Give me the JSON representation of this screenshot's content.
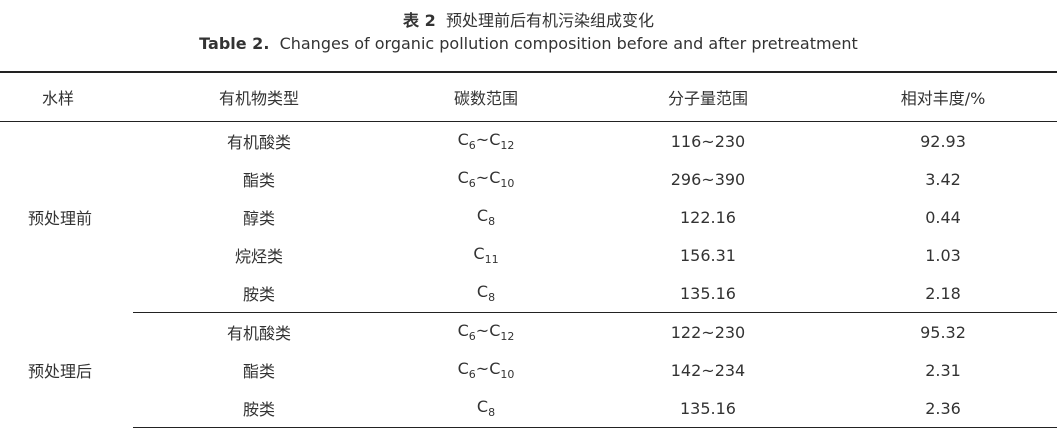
{
  "caption": {
    "zh_label": "表 2",
    "zh_title": "预处理前后有机污染组成变化",
    "en_label": "Table 2.",
    "en_title": "Changes of organic pollution composition before and after pretreatment"
  },
  "columns": [
    "水样",
    "有机物类型",
    "碳数范围",
    "分子量范围",
    "相对丰度/%"
  ],
  "groups": [
    {
      "sample": "预处理前",
      "rows": [
        {
          "type": "有机酸类",
          "carbon": [
            [
              "C",
              "6"
            ],
            [
              "C",
              "12"
            ]
          ],
          "mw": "116~230",
          "abundance": "92.93"
        },
        {
          "type": "酯类",
          "carbon": [
            [
              "C",
              "6"
            ],
            [
              "C",
              "10"
            ]
          ],
          "mw": "296~390",
          "abundance": "3.42"
        },
        {
          "type": "醇类",
          "carbon": [
            [
              "C",
              "8"
            ]
          ],
          "mw": "122.16",
          "abundance": "0.44"
        },
        {
          "type": "烷烃类",
          "carbon": [
            [
              "C",
              "11"
            ]
          ],
          "mw": "156.31",
          "abundance": "1.03"
        },
        {
          "type": "胺类",
          "carbon": [
            [
              "C",
              "8"
            ]
          ],
          "mw": "135.16",
          "abundance": "2.18"
        }
      ]
    },
    {
      "sample": "预处理后",
      "rows": [
        {
          "type": "有机酸类",
          "carbon": [
            [
              "C",
              "6"
            ],
            [
              "C",
              "12"
            ]
          ],
          "mw": "122~230",
          "abundance": "95.32"
        },
        {
          "type": "酯类",
          "carbon": [
            [
              "C",
              "6"
            ],
            [
              "C",
              "10"
            ]
          ],
          "mw": "142~234",
          "abundance": "2.31"
        },
        {
          "type": "胺类",
          "carbon": [
            [
              "C",
              "8"
            ]
          ],
          "mw": "135.16",
          "abundance": "2.36"
        }
      ]
    }
  ],
  "carbon_separator": "~"
}
